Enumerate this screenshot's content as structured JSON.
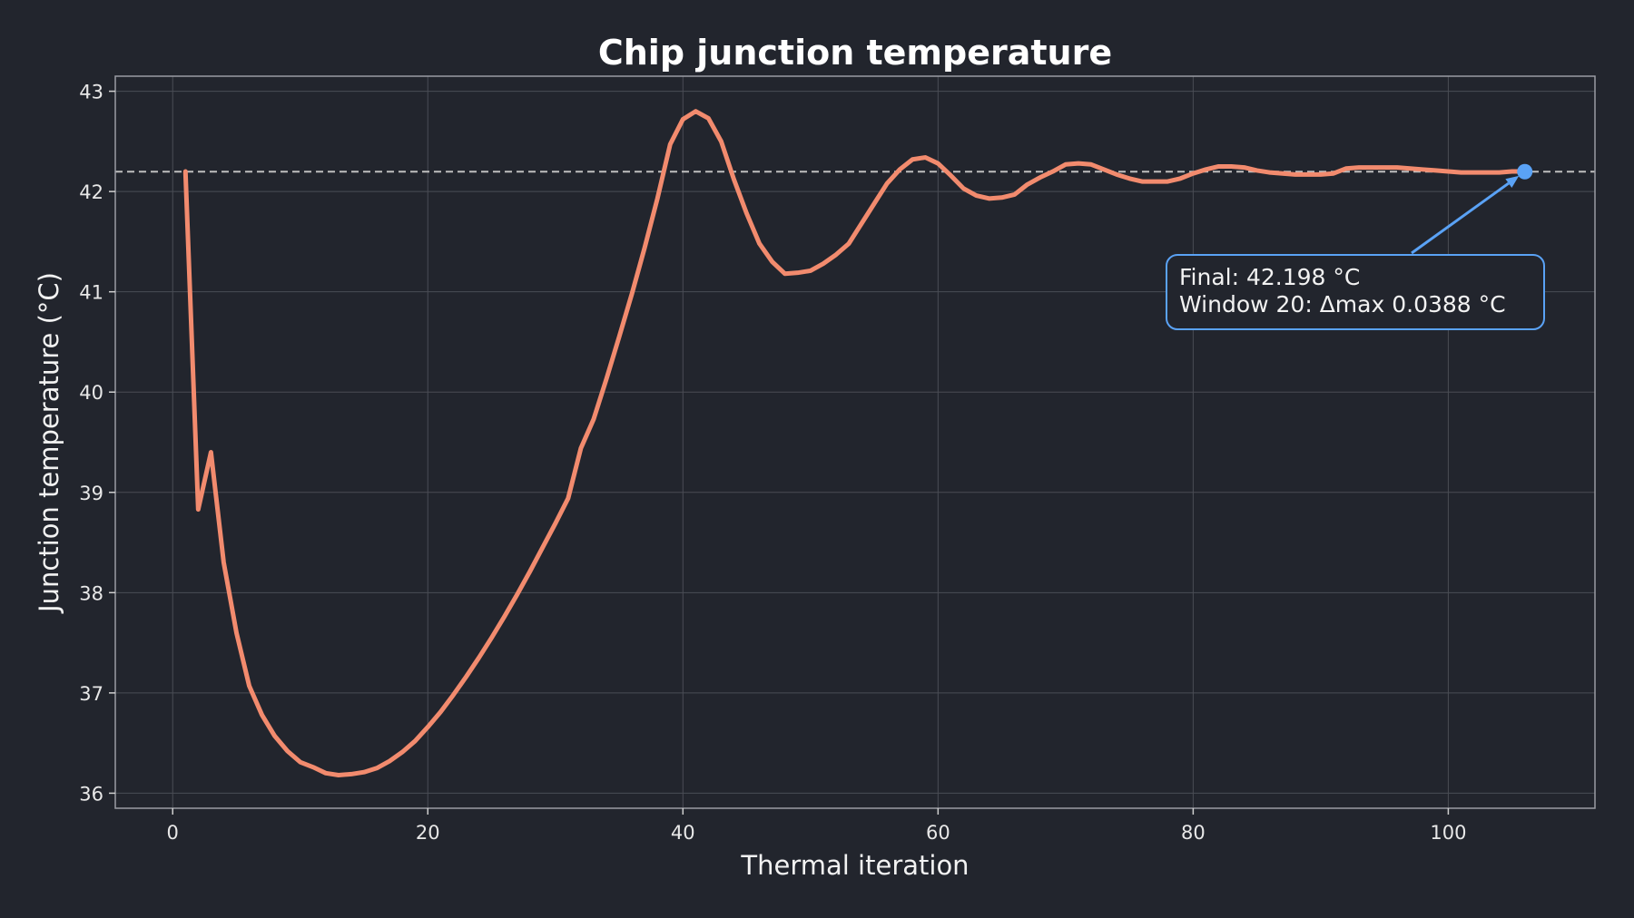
{
  "chart_data": {
    "type": "line",
    "title": "Chip junction temperature",
    "xlabel": "Thermal iteration",
    "ylabel": "Junction temperature (°C)",
    "xlim": [
      -4.5,
      111.5
    ],
    "ylim": [
      35.85,
      43.15
    ],
    "xticks": [
      0,
      20,
      40,
      60,
      80,
      100
    ],
    "yticks": [
      36,
      37,
      38,
      39,
      40,
      41,
      42,
      43
    ],
    "grid": true,
    "colors": {
      "line": "#f28b6e",
      "reference": "#bfbfbf",
      "marker": "#5aa2f5",
      "annotation_border": "#5aa2f5",
      "grid": "#4a4d55",
      "background": "#22252d"
    },
    "reference_line": {
      "y": 42.198,
      "style": "dashed"
    },
    "series": [
      {
        "x": [
          1,
          2,
          3,
          4,
          5,
          6,
          7,
          8,
          9,
          10,
          11,
          12,
          13,
          14,
          15,
          16,
          17,
          18,
          19,
          20,
          21,
          22,
          23,
          24,
          25,
          26,
          27,
          28,
          29,
          30,
          31,
          32,
          33,
          34,
          35,
          36,
          37,
          38,
          39,
          40,
          41,
          42,
          43,
          44,
          45,
          46,
          47,
          48,
          49,
          50,
          51,
          52,
          53,
          54,
          55,
          56,
          57,
          58,
          59,
          60,
          61,
          62,
          63,
          64,
          65,
          66,
          67,
          68,
          69,
          70,
          71,
          72,
          73,
          74,
          75,
          76,
          77,
          78,
          79,
          80,
          81,
          82,
          83,
          84,
          85,
          86,
          87,
          88,
          89,
          90,
          91,
          92,
          93,
          94,
          95,
          96,
          97,
          98,
          99,
          100,
          101,
          102,
          103,
          104,
          105,
          106
        ],
        "y": [
          42.2,
          38.83,
          39.4,
          38.3,
          37.6,
          37.07,
          36.78,
          36.57,
          36.42,
          36.31,
          36.26,
          36.2,
          36.18,
          36.19,
          36.21,
          36.25,
          36.32,
          36.41,
          36.52,
          36.66,
          36.81,
          36.98,
          37.16,
          37.35,
          37.55,
          37.76,
          37.98,
          38.21,
          38.45,
          38.69,
          38.94,
          39.44,
          39.73,
          40.13,
          40.55,
          40.98,
          41.44,
          41.93,
          42.47,
          42.72,
          42.8,
          42.73,
          42.5,
          42.12,
          41.78,
          41.48,
          41.3,
          41.18,
          41.19,
          41.21,
          41.28,
          41.37,
          41.48,
          41.68,
          41.88,
          42.08,
          42.22,
          42.32,
          42.34,
          42.28,
          42.16,
          42.03,
          41.96,
          41.93,
          41.94,
          41.97,
          42.07,
          42.14,
          42.2,
          42.27,
          42.28,
          42.27,
          42.22,
          42.17,
          42.13,
          42.1,
          42.1,
          42.1,
          42.13,
          42.18,
          42.22,
          42.25,
          42.25,
          42.24,
          42.21,
          42.19,
          42.18,
          42.17,
          42.17,
          42.17,
          42.18,
          42.23,
          42.24,
          42.24,
          42.24,
          42.24,
          42.23,
          42.22,
          42.21,
          42.2,
          42.19,
          42.19,
          42.19,
          42.19,
          42.2,
          42.2
        ]
      }
    ],
    "final_point": {
      "x": 106,
      "y": 42.198
    },
    "annotation": {
      "line1": "Final: 42.198 °C",
      "line2": "Window 20: Δmax 0.0388 °C"
    }
  }
}
